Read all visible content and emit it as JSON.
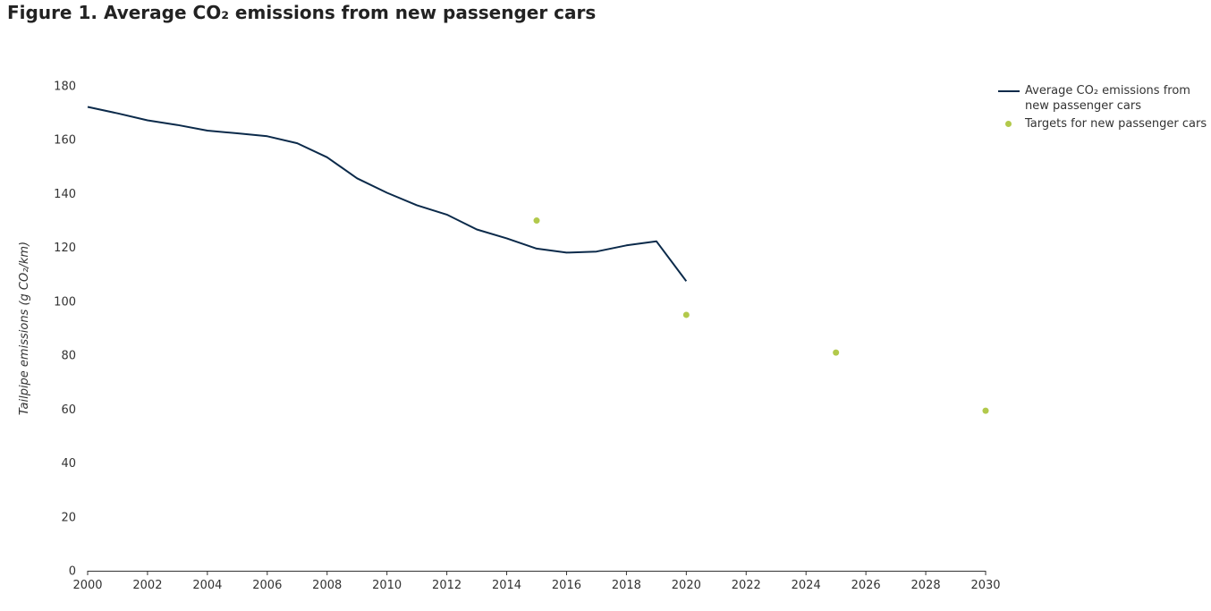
{
  "title": "Figure 1. Average CO₂ emissions from new passenger cars",
  "chart_data": {
    "type": "line",
    "title": "Figure 1. Average CO₂ emissions from new passenger cars",
    "xlabel": "",
    "ylabel": "Tailpipe emissions (g CO₂/km)",
    "xlim": [
      2000,
      2030
    ],
    "ylim": [
      0,
      180
    ],
    "x_ticks": [
      "2000",
      "2002",
      "2004",
      "2006",
      "2008",
      "2010",
      "2012",
      "2014",
      "2016",
      "2018",
      "2020",
      "2022",
      "2024",
      "2026",
      "2028",
      "2030"
    ],
    "y_ticks": [
      "0",
      "20",
      "40",
      "60",
      "80",
      "100",
      "120",
      "140",
      "160",
      "180"
    ],
    "grid": false,
    "legend_position": "top-right",
    "series": [
      {
        "name": "Average CO₂ emissions from new passenger cars",
        "style": "line",
        "color": "#0b2a4a",
        "x": [
          2000,
          2001,
          2002,
          2003,
          2004,
          2005,
          2006,
          2007,
          2008,
          2009,
          2010,
          2011,
          2012,
          2013,
          2014,
          2015,
          2016,
          2017,
          2018,
          2019,
          2020
        ],
        "y": [
          172.2,
          169.8,
          167.2,
          165.5,
          163.4,
          162.4,
          161.3,
          158.7,
          153.5,
          145.7,
          140.3,
          135.7,
          132.2,
          126.7,
          123.4,
          119.6,
          118.1,
          118.5,
          120.8,
          122.3,
          107.5
        ]
      },
      {
        "name": "Targets for new passenger cars",
        "style": "scatter",
        "color": "#b2c94b",
        "x": [
          2015,
          2020,
          2025,
          2030
        ],
        "y": [
          130,
          95,
          81,
          59.4
        ]
      }
    ]
  }
}
